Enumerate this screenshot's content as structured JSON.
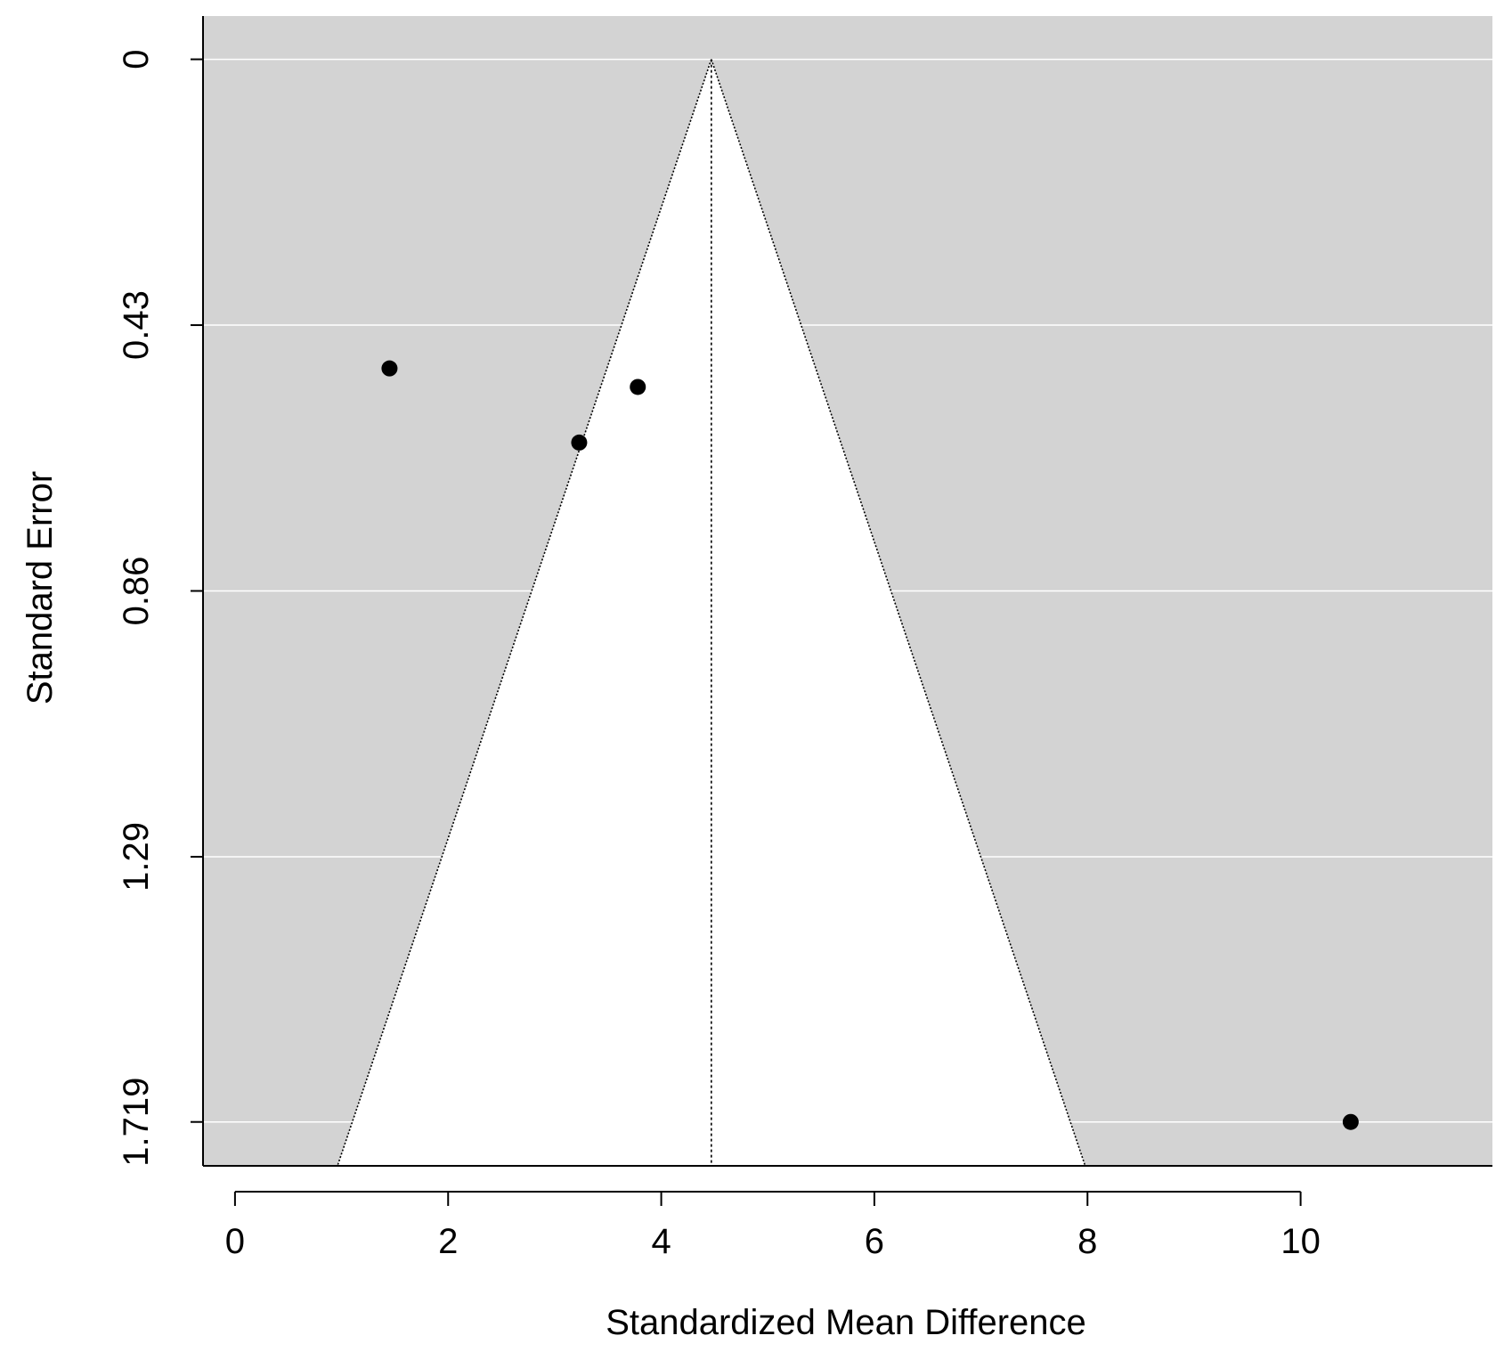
{
  "chart_data": {
    "type": "scatter",
    "subtype": "funnel-plot",
    "title": "",
    "xlabel": "Standardized Mean Difference",
    "ylabel": "Standard Error",
    "xlim": [
      -0.3,
      11.8
    ],
    "ylim": [
      1.79,
      -0.07
    ],
    "y_reversed": true,
    "xticks": [
      0,
      2,
      4,
      6,
      8,
      10
    ],
    "xtick_labels": [
      "0",
      "2",
      "4",
      "6",
      "8",
      "10"
    ],
    "yticks": [
      0,
      0.43,
      0.86,
      1.29,
      1.719
    ],
    "ytick_labels": [
      "0",
      "0.43",
      "0.86",
      "1.29",
      "1.719"
    ],
    "grid": "horizontal at y ticks",
    "points": [
      {
        "x": 1.45,
        "y": 0.5
      },
      {
        "x": 3.78,
        "y": 0.53
      },
      {
        "x": 3.23,
        "y": 0.62
      },
      {
        "x": 10.47,
        "y": 1.719
      }
    ],
    "pooled_estimate": 4.47,
    "funnel_z": 1.96,
    "colors": {
      "plot_background": "#d3d3d3",
      "funnel_fill": "#ffffff",
      "gridline": "#ffffff",
      "points": "#000000",
      "lines": "#000000"
    }
  }
}
